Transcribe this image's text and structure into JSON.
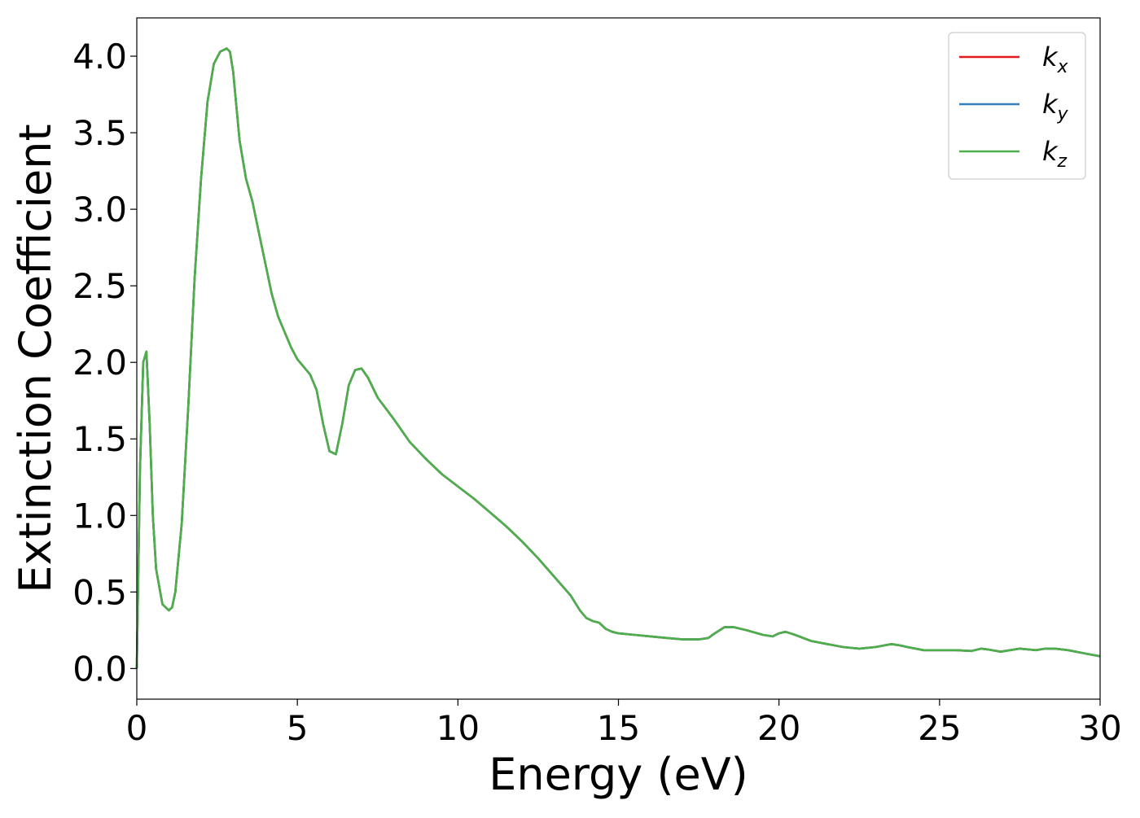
{
  "chart_data": {
    "type": "line",
    "xlabel": "Energy (eV)",
    "ylabel": "Extinction Coefficient",
    "xlim": [
      0,
      30
    ],
    "ylim": [
      -0.2,
      4.25
    ],
    "xticks": [
      0,
      5,
      10,
      15,
      20,
      25,
      30
    ],
    "xtick_labels": [
      "0",
      "5",
      "10",
      "15",
      "20",
      "25",
      "30"
    ],
    "yticks": [
      0.0,
      0.5,
      1.0,
      1.5,
      2.0,
      2.5,
      3.0,
      3.5,
      4.0
    ],
    "ytick_labels": [
      "0.0",
      "0.5",
      "1.0",
      "1.5",
      "2.0",
      "2.5",
      "3.0",
      "3.5",
      "4.0"
    ],
    "grid": false,
    "legend_position": "top-right",
    "x": [
      0,
      0.1,
      0.2,
      0.3,
      0.4,
      0.5,
      0.6,
      0.8,
      1.0,
      1.1,
      1.2,
      1.4,
      1.6,
      1.8,
      2.0,
      2.2,
      2.4,
      2.6,
      2.8,
      2.9,
      3.0,
      3.2,
      3.4,
      3.6,
      3.8,
      4.0,
      4.2,
      4.4,
      4.6,
      4.8,
      5.0,
      5.2,
      5.4,
      5.6,
      5.8,
      6.0,
      6.2,
      6.4,
      6.6,
      6.8,
      7.0,
      7.2,
      7.5,
      8.0,
      8.5,
      9.0,
      9.5,
      10.0,
      10.5,
      11.0,
      11.5,
      12.0,
      12.5,
      13.0,
      13.5,
      13.8,
      14.0,
      14.2,
      14.4,
      14.6,
      14.8,
      15.0,
      15.5,
      16.0,
      16.5,
      17.0,
      17.5,
      17.8,
      18.0,
      18.3,
      18.6,
      19.0,
      19.5,
      19.8,
      20.0,
      20.2,
      20.5,
      21.0,
      21.5,
      22.0,
      22.5,
      23.0,
      23.5,
      23.8,
      24.0,
      24.5,
      25.0,
      25.5,
      26.0,
      26.3,
      26.5,
      26.9,
      27.2,
      27.5,
      28.0,
      28.3,
      28.6,
      29.0,
      29.5,
      30.0
    ],
    "series": [
      {
        "name": "k",
        "name_sub": "x",
        "color": "#e41a1c",
        "values": [
          0.0,
          1.3,
          2.0,
          2.07,
          1.6,
          1.0,
          0.65,
          0.42,
          0.38,
          0.4,
          0.5,
          0.95,
          1.7,
          2.55,
          3.2,
          3.7,
          3.95,
          4.03,
          4.05,
          4.03,
          3.9,
          3.45,
          3.2,
          3.05,
          2.85,
          2.65,
          2.45,
          2.3,
          2.2,
          2.1,
          2.02,
          1.97,
          1.92,
          1.82,
          1.6,
          1.42,
          1.4,
          1.6,
          1.85,
          1.95,
          1.96,
          1.9,
          1.77,
          1.63,
          1.48,
          1.37,
          1.27,
          1.19,
          1.11,
          1.02,
          0.93,
          0.83,
          0.72,
          0.6,
          0.48,
          0.38,
          0.33,
          0.31,
          0.3,
          0.26,
          0.24,
          0.23,
          0.22,
          0.21,
          0.2,
          0.19,
          0.19,
          0.2,
          0.23,
          0.27,
          0.27,
          0.25,
          0.22,
          0.21,
          0.23,
          0.24,
          0.22,
          0.18,
          0.16,
          0.14,
          0.13,
          0.14,
          0.16,
          0.15,
          0.14,
          0.12,
          0.12,
          0.12,
          0.115,
          0.13,
          0.125,
          0.11,
          0.12,
          0.13,
          0.12,
          0.13,
          0.13,
          0.12,
          0.1,
          0.08
        ]
      },
      {
        "name": "k",
        "name_sub": "y",
        "color": "#377eb8",
        "values": [
          0.0,
          1.3,
          2.0,
          2.07,
          1.6,
          1.0,
          0.65,
          0.42,
          0.38,
          0.4,
          0.5,
          0.95,
          1.7,
          2.55,
          3.2,
          3.7,
          3.95,
          4.03,
          4.05,
          4.03,
          3.9,
          3.45,
          3.2,
          3.05,
          2.85,
          2.65,
          2.45,
          2.3,
          2.2,
          2.1,
          2.02,
          1.97,
          1.92,
          1.82,
          1.6,
          1.42,
          1.4,
          1.6,
          1.85,
          1.95,
          1.96,
          1.9,
          1.77,
          1.63,
          1.48,
          1.37,
          1.27,
          1.19,
          1.11,
          1.02,
          0.93,
          0.83,
          0.72,
          0.6,
          0.48,
          0.38,
          0.33,
          0.31,
          0.3,
          0.26,
          0.24,
          0.23,
          0.22,
          0.21,
          0.2,
          0.19,
          0.19,
          0.2,
          0.23,
          0.27,
          0.27,
          0.25,
          0.22,
          0.21,
          0.23,
          0.24,
          0.22,
          0.18,
          0.16,
          0.14,
          0.13,
          0.14,
          0.16,
          0.15,
          0.14,
          0.12,
          0.12,
          0.12,
          0.115,
          0.13,
          0.125,
          0.11,
          0.12,
          0.13,
          0.12,
          0.13,
          0.13,
          0.12,
          0.1,
          0.08
        ]
      },
      {
        "name": "k",
        "name_sub": "z",
        "color": "#4daf4a",
        "values": [
          0.0,
          1.3,
          2.0,
          2.07,
          1.6,
          1.0,
          0.65,
          0.42,
          0.38,
          0.4,
          0.5,
          0.95,
          1.7,
          2.55,
          3.2,
          3.7,
          3.95,
          4.03,
          4.05,
          4.03,
          3.9,
          3.45,
          3.2,
          3.05,
          2.85,
          2.65,
          2.45,
          2.3,
          2.2,
          2.1,
          2.02,
          1.97,
          1.92,
          1.82,
          1.6,
          1.42,
          1.4,
          1.6,
          1.85,
          1.95,
          1.96,
          1.9,
          1.77,
          1.63,
          1.48,
          1.37,
          1.27,
          1.19,
          1.11,
          1.02,
          0.93,
          0.83,
          0.72,
          0.6,
          0.48,
          0.38,
          0.33,
          0.31,
          0.3,
          0.26,
          0.24,
          0.23,
          0.22,
          0.21,
          0.2,
          0.19,
          0.19,
          0.2,
          0.23,
          0.27,
          0.27,
          0.25,
          0.22,
          0.21,
          0.23,
          0.24,
          0.22,
          0.18,
          0.16,
          0.14,
          0.13,
          0.14,
          0.16,
          0.15,
          0.14,
          0.12,
          0.12,
          0.12,
          0.115,
          0.13,
          0.125,
          0.11,
          0.12,
          0.13,
          0.12,
          0.13,
          0.13,
          0.12,
          0.1,
          0.08
        ]
      }
    ]
  }
}
